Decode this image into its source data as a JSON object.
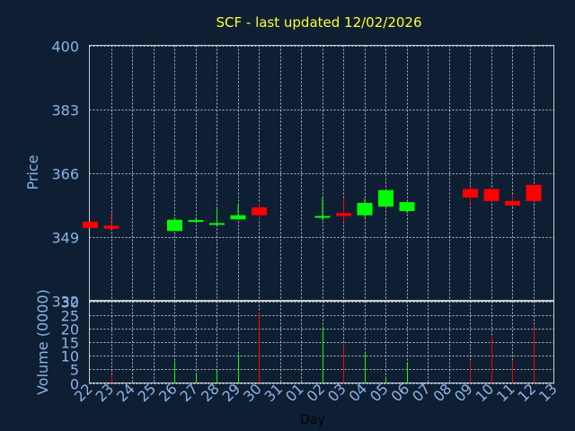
{
  "chart_data": [
    {
      "type": "candlestick",
      "title": "SCF - last updated 12/02/2026",
      "ylabel": "Price",
      "ylim": [
        332,
        400
      ],
      "yticks": [
        "400",
        "383",
        "366",
        "349",
        "332"
      ],
      "grid": true,
      "categories": [
        "22",
        "23",
        "24",
        "25",
        "26",
        "27",
        "28",
        "29",
        "30",
        "31",
        "01",
        "02",
        "03",
        "04",
        "05",
        "06",
        "07",
        "08",
        "09",
        "10",
        "11",
        "12",
        "13"
      ],
      "candles": [
        {
          "x": "22",
          "open": 353.0,
          "close": 351.3,
          "high": 353.0,
          "low": 351.3,
          "color": "red"
        },
        {
          "x": "23",
          "open": 351.9,
          "close": 351.1,
          "high": 355.3,
          "low": 350.8,
          "color": "red"
        },
        {
          "x": "26",
          "open": 350.5,
          "close": 353.5,
          "high": 354.1,
          "low": 350.5,
          "color": "green"
        },
        {
          "x": "27",
          "open": 352.9,
          "close": 353.4,
          "high": 354.1,
          "low": 352.9,
          "color": "green"
        },
        {
          "x": "28",
          "open": 352.3,
          "close": 352.6,
          "high": 356.5,
          "low": 352.3,
          "color": "green"
        },
        {
          "x": "29",
          "open": 353.6,
          "close": 354.7,
          "high": 357.6,
          "low": 353.6,
          "color": "green"
        },
        {
          "x": "30",
          "open": 356.8,
          "close": 354.7,
          "high": 358.0,
          "low": 353.6,
          "color": "red"
        },
        {
          "x": "02",
          "open": 354.1,
          "close": 354.5,
          "high": 359.4,
          "low": 353.3,
          "color": "green"
        },
        {
          "x": "03",
          "open": 355.3,
          "close": 354.5,
          "high": 359.4,
          "low": 352.9,
          "color": "red"
        },
        {
          "x": "04",
          "open": 354.7,
          "close": 358.0,
          "high": 359.1,
          "low": 354.1,
          "color": "green"
        },
        {
          "x": "05",
          "open": 357.0,
          "close": 361.4,
          "high": 361.4,
          "low": 357.0,
          "color": "green"
        },
        {
          "x": "06",
          "open": 355.8,
          "close": 358.2,
          "high": 358.2,
          "low": 355.3,
          "color": "green"
        },
        {
          "x": "09",
          "open": 361.7,
          "close": 359.4,
          "high": 362.3,
          "low": 357.6,
          "color": "red"
        },
        {
          "x": "10",
          "open": 361.7,
          "close": 358.5,
          "high": 361.7,
          "low": 358.2,
          "color": "red"
        },
        {
          "x": "11",
          "open": 358.5,
          "close": 357.3,
          "high": 360.1,
          "low": 357.0,
          "color": "red"
        },
        {
          "x": "12",
          "open": 362.8,
          "close": 358.5,
          "high": 362.8,
          "low": 358.5,
          "color": "red"
        }
      ]
    },
    {
      "type": "bar",
      "ylabel": "Volume (0000)",
      "xlabel": "Day",
      "ylim": [
        0,
        30
      ],
      "yticks": [
        "30",
        "25",
        "20",
        "15",
        "10",
        "5",
        "0"
      ],
      "grid": true,
      "categories": [
        "22",
        "23",
        "24",
        "25",
        "26",
        "27",
        "28",
        "29",
        "30",
        "31",
        "01",
        "02",
        "03",
        "04",
        "05",
        "06",
        "07",
        "08",
        "09",
        "10",
        "11",
        "12",
        "13"
      ],
      "volumes": [
        {
          "x": "23",
          "value": 3,
          "color": "red"
        },
        {
          "x": "26",
          "value": 8,
          "color": "green"
        },
        {
          "x": "27",
          "value": 3,
          "color": "green"
        },
        {
          "x": "28",
          "value": 4.5,
          "color": "green"
        },
        {
          "x": "29",
          "value": 10.5,
          "color": "green"
        },
        {
          "x": "30",
          "value": 26,
          "color": "red"
        },
        {
          "x": "02",
          "value": 20.5,
          "color": "green"
        },
        {
          "x": "03",
          "value": 14,
          "color": "red"
        },
        {
          "x": "04",
          "value": 11,
          "color": "green"
        },
        {
          "x": "05",
          "value": 2,
          "color": "green"
        },
        {
          "x": "06",
          "value": 7,
          "color": "green"
        },
        {
          "x": "09",
          "value": 8.5,
          "color": "red"
        },
        {
          "x": "10",
          "value": 17,
          "color": "red"
        },
        {
          "x": "11",
          "value": 8.5,
          "color": "red"
        },
        {
          "x": "12",
          "value": 20.5,
          "color": "red"
        }
      ]
    }
  ],
  "colors": {
    "background": "#0f1f33",
    "axis_text": "#8ab4e6",
    "title": "#ffff33",
    "grid": "#b0b8c4",
    "up": "#00ff00",
    "down": "#ff0000",
    "xlabel": "#000000"
  }
}
